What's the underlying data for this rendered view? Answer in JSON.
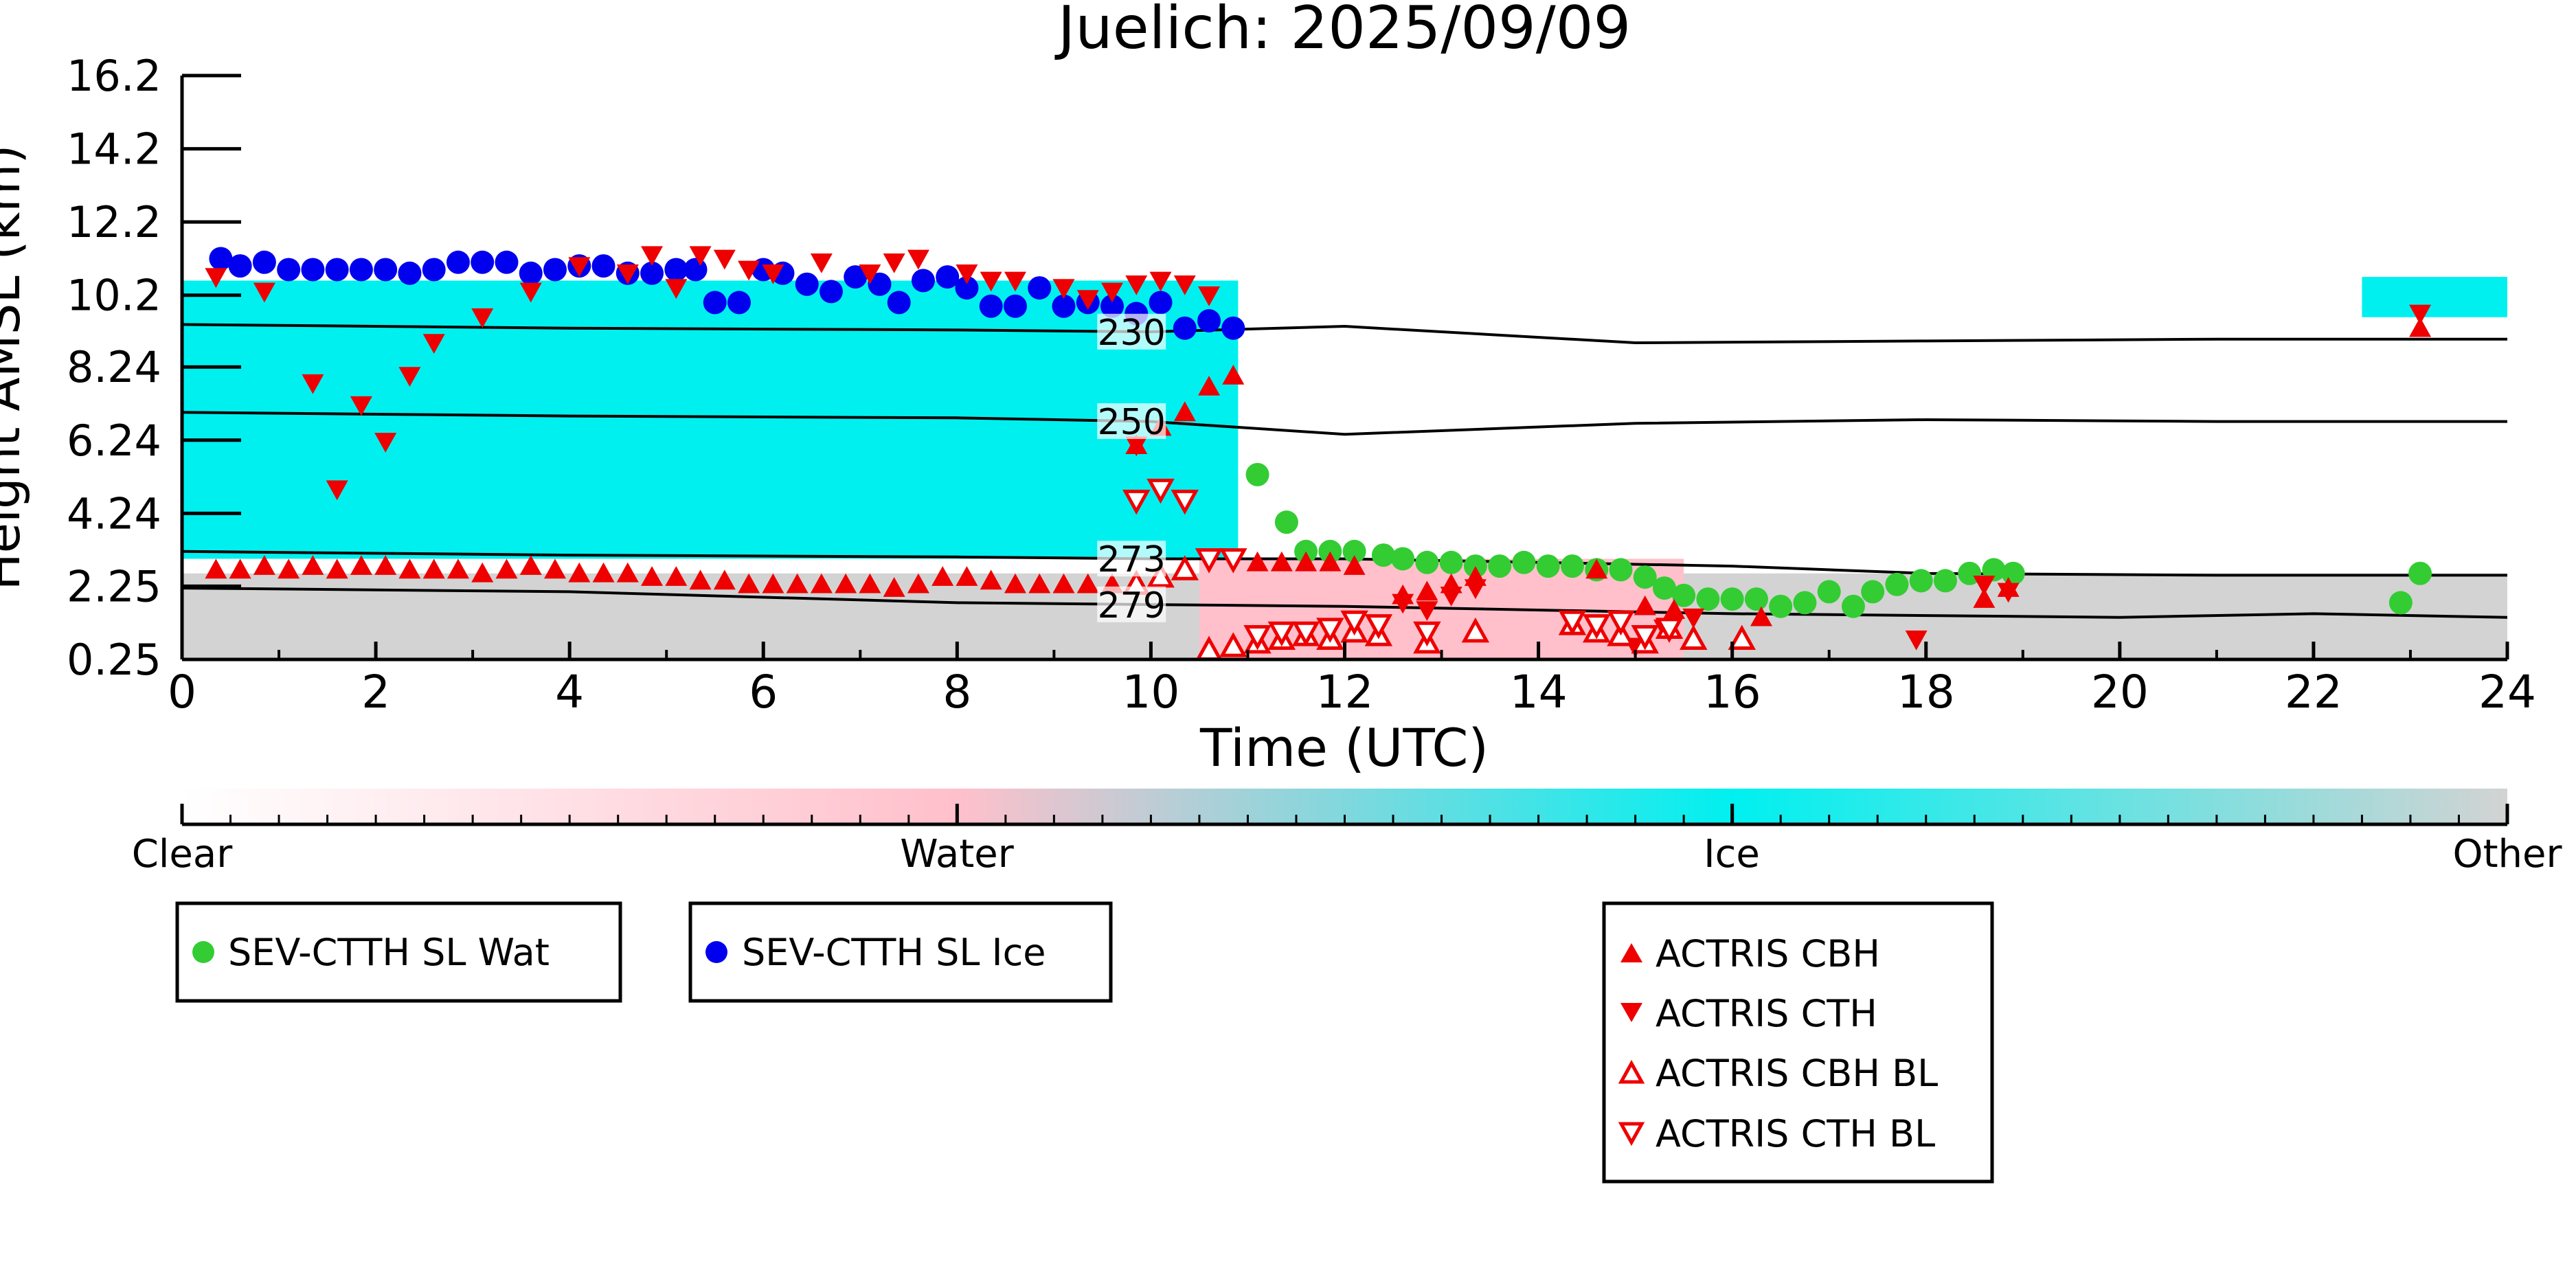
{
  "chart_data": {
    "type": "scatter",
    "title": "Juelich: 2025/09/09",
    "xlabel": "Time (UTC)",
    "ylabel": "Height AMSL (km)",
    "xlim": [
      0,
      24
    ],
    "ylim": [
      0.25,
      16.2
    ],
    "xticks": [
      "0",
      "2",
      "4",
      "6",
      "8",
      "10",
      "12",
      "14",
      "16",
      "18",
      "20",
      "22",
      "24"
    ],
    "yticks": [
      "0.25",
      "2.25",
      "4.24",
      "6.24",
      "8.24",
      "10.2",
      "12.2",
      "14.2",
      "16.2"
    ],
    "background_classification": {
      "description": "cloud phase curtain",
      "regions": [
        {
          "class": "Ice",
          "color": "#00f0f0",
          "t0": 0.0,
          "t1": 10.9,
          "h0": 3.0,
          "h1": 10.6
        },
        {
          "class": "Other",
          "color": "#d3d3d3",
          "t0": 0.0,
          "t1": 24.0,
          "h0": 0.25,
          "h1": 2.6
        },
        {
          "class": "Water",
          "color": "#ffc0cb",
          "t0": 10.5,
          "t1": 15.5,
          "h0": 0.25,
          "h1": 3.0
        },
        {
          "class": "Ice",
          "color": "#00f0f0",
          "t0": 22.5,
          "t1": 24.0,
          "h0": 9.6,
          "h1": 10.7
        }
      ]
    },
    "isotherms": [
      {
        "label": "230",
        "x": [
          0,
          4,
          8,
          10,
          12,
          15,
          18,
          21,
          24
        ],
        "y": [
          9.4,
          9.3,
          9.25,
          9.2,
          9.35,
          8.9,
          8.95,
          9.0,
          9.0
        ]
      },
      {
        "label": "250",
        "x": [
          0,
          4,
          8,
          10,
          12,
          15,
          18,
          21,
          24
        ],
        "y": [
          7.0,
          6.9,
          6.85,
          6.75,
          6.4,
          6.7,
          6.8,
          6.75,
          6.75
        ]
      },
      {
        "label": "273",
        "x": [
          0,
          4,
          8,
          10,
          12,
          16,
          18,
          21,
          24
        ],
        "y": [
          3.2,
          3.1,
          3.05,
          3.0,
          3.0,
          2.8,
          2.6,
          2.55,
          2.55
        ]
      },
      {
        "label": "279",
        "x": [
          0,
          4,
          8,
          10,
          12,
          16,
          20,
          22,
          24
        ],
        "y": [
          2.2,
          2.1,
          1.8,
          1.75,
          1.7,
          1.5,
          1.4,
          1.5,
          1.4
        ]
      }
    ],
    "series": [
      {
        "name": "SEV-CTTH SL Wat",
        "marker": "circle",
        "color": "#33cc33",
        "x": [
          11.1,
          11.4,
          11.6,
          11.85,
          12.1,
          12.4,
          12.6,
          12.85,
          13.1,
          13.35,
          13.6,
          13.85,
          14.1,
          14.35,
          14.6,
          14.85,
          15.1,
          15.3,
          15.5,
          15.75,
          16.0,
          16.25,
          16.5,
          16.75,
          17.0,
          17.25,
          17.45,
          17.7,
          17.95,
          18.2,
          18.45,
          18.7,
          18.9,
          22.9,
          23.1
        ],
        "y": [
          5.3,
          4.0,
          3.2,
          3.2,
          3.2,
          3.1,
          3.0,
          2.9,
          2.9,
          2.8,
          2.8,
          2.9,
          2.8,
          2.8,
          2.7,
          2.7,
          2.5,
          2.2,
          2.0,
          1.9,
          1.9,
          1.9,
          1.7,
          1.8,
          2.1,
          1.7,
          2.1,
          2.3,
          2.4,
          2.4,
          2.6,
          2.7,
          2.6,
          1.8,
          2.6
        ]
      },
      {
        "name": "SEV-CTTH SL Ice",
        "marker": "circle",
        "color": "#0000ee",
        "x": [
          0.4,
          0.6,
          0.85,
          1.1,
          1.35,
          1.6,
          1.85,
          2.1,
          2.35,
          2.6,
          2.85,
          3.1,
          3.35,
          3.6,
          3.85,
          4.1,
          4.35,
          4.6,
          4.85,
          5.1,
          5.3,
          5.5,
          5.75,
          6.0,
          6.2,
          6.45,
          6.7,
          6.95,
          7.2,
          7.4,
          7.65,
          7.9,
          8.1,
          8.35,
          8.6,
          8.85,
          9.1,
          9.35,
          9.6,
          9.85,
          10.1,
          10.35,
          10.6,
          10.85
        ],
        "y": [
          11.2,
          11.0,
          11.1,
          10.9,
          10.9,
          10.9,
          10.9,
          10.9,
          10.8,
          10.9,
          11.1,
          11.1,
          11.1,
          10.8,
          10.9,
          11.0,
          11.0,
          10.8,
          10.8,
          10.9,
          10.9,
          10.0,
          10.0,
          10.9,
          10.8,
          10.5,
          10.3,
          10.7,
          10.5,
          10.0,
          10.6,
          10.7,
          10.4,
          9.9,
          9.9,
          10.4,
          9.9,
          10.0,
          9.9,
          9.7,
          10.0,
          9.3,
          9.5,
          9.3
        ]
      },
      {
        "name": "ACTRIS CBH",
        "marker": "triangle-up",
        "color": "#ee0000",
        "filled": true,
        "x": [
          0.35,
          0.6,
          0.85,
          1.1,
          1.35,
          1.6,
          1.85,
          2.1,
          2.35,
          2.6,
          2.85,
          3.1,
          3.35,
          3.6,
          3.85,
          4.1,
          4.35,
          4.6,
          4.85,
          5.1,
          5.35,
          5.6,
          5.85,
          6.1,
          6.35,
          6.6,
          6.85,
          7.1,
          7.35,
          7.6,
          7.85,
          8.1,
          8.35,
          8.6,
          8.85,
          9.1,
          9.35,
          9.6,
          9.85,
          10.1,
          10.35,
          10.6,
          10.85,
          11.1,
          11.35,
          11.6,
          11.85,
          12.1,
          12.6,
          12.85,
          13.1,
          13.35,
          14.6,
          15.1,
          15.4,
          16.3,
          18.6,
          18.85,
          23.1
        ],
        "y": [
          2.7,
          2.7,
          2.8,
          2.7,
          2.8,
          2.7,
          2.8,
          2.8,
          2.7,
          2.7,
          2.7,
          2.6,
          2.7,
          2.8,
          2.7,
          2.6,
          2.6,
          2.6,
          2.5,
          2.5,
          2.4,
          2.4,
          2.3,
          2.3,
          2.3,
          2.3,
          2.3,
          2.3,
          2.2,
          2.3,
          2.5,
          2.5,
          2.4,
          2.3,
          2.3,
          2.3,
          2.3,
          2.3,
          6.1,
          6.6,
          7.0,
          7.7,
          8.0,
          2.9,
          2.9,
          2.9,
          2.9,
          2.8,
          2.0,
          2.1,
          2.3,
          2.5,
          2.7,
          1.7,
          1.6,
          1.4,
          1.9,
          2.2,
          9.3
        ]
      },
      {
        "name": "ACTRIS CTH",
        "marker": "triangle-down",
        "color": "#ee0000",
        "filled": true,
        "x": [
          0.35,
          0.85,
          1.35,
          1.6,
          1.85,
          2.1,
          2.35,
          2.6,
          3.1,
          3.6,
          4.1,
          4.6,
          4.85,
          5.1,
          5.35,
          5.6,
          5.85,
          6.1,
          6.6,
          7.1,
          7.35,
          7.6,
          8.1,
          8.35,
          8.6,
          9.1,
          9.35,
          9.6,
          9.85,
          10.1,
          10.35,
          10.6,
          9.85,
          12.6,
          12.85,
          13.1,
          13.35,
          15.0,
          15.3,
          15.6,
          17.9,
          18.6,
          18.85,
          23.1
        ],
        "y": [
          10.7,
          10.3,
          7.8,
          4.9,
          7.2,
          6.2,
          8.0,
          8.9,
          9.6,
          10.3,
          11.0,
          10.8,
          11.3,
          10.4,
          11.3,
          11.2,
          10.9,
          10.8,
          11.1,
          10.8,
          11.1,
          11.2,
          10.8,
          10.6,
          10.6,
          10.4,
          10.1,
          10.3,
          10.5,
          10.6,
          10.5,
          10.2,
          6.1,
          1.8,
          1.6,
          2.0,
          2.2,
          0.6,
          1.1,
          1.4,
          0.8,
          2.3,
          2.1,
          9.7
        ]
      },
      {
        "name": "ACTRIS CBH BL",
        "marker": "triangle-up",
        "color": "#ee0000",
        "filled": false,
        "x": [
          9.85,
          10.1,
          10.35,
          10.6,
          10.85,
          11.1,
          11.35,
          11.6,
          11.85,
          12.1,
          12.35,
          12.85,
          13.35,
          14.35,
          14.6,
          14.85,
          15.1,
          15.35,
          15.6,
          16.1
        ],
        "y": [
          2.3,
          2.5,
          2.7,
          0.5,
          0.6,
          0.7,
          0.8,
          0.9,
          0.8,
          1.0,
          0.9,
          0.7,
          1.0,
          1.2,
          1.0,
          0.9,
          0.7,
          1.1,
          0.8,
          0.8
        ]
      },
      {
        "name": "ACTRIS CTH BL",
        "marker": "triangle-down",
        "color": "#ee0000",
        "filled": false,
        "x": [
          9.85,
          10.1,
          10.35,
          10.6,
          10.85,
          11.1,
          11.35,
          11.6,
          11.85,
          12.1,
          12.35,
          12.85,
          14.35,
          14.6,
          14.85,
          15.1,
          15.35
        ],
        "y": [
          4.6,
          4.9,
          4.6,
          3.0,
          3.0,
          0.9,
          1.0,
          1.0,
          1.1,
          1.3,
          1.2,
          1.0,
          1.3,
          1.2,
          1.3,
          0.9,
          1.1
        ]
      }
    ],
    "colorbar": {
      "labels": [
        "Clear",
        "Water",
        "Ice",
        "Other"
      ],
      "colors": [
        "#ffffff",
        "#ffc0cb",
        "#00f0f0",
        "#d3d3d3"
      ]
    },
    "legends": [
      {
        "id": "sev",
        "entries": [
          "SEV-CTTH SL Wat"
        ]
      },
      {
        "id": "sevice",
        "entries": [
          "SEV-CTTH SL Ice"
        ]
      },
      {
        "id": "actris",
        "entries": [
          "ACTRIS CBH",
          "ACTRIS CTH",
          "ACTRIS CBH BL",
          "ACTRIS CTH BL"
        ]
      }
    ]
  }
}
